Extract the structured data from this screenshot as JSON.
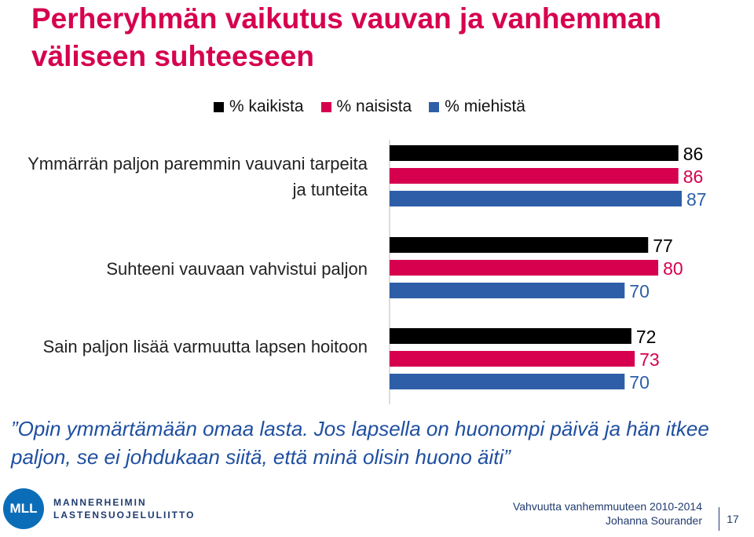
{
  "slide": {
    "title": "Perheryhmän vaikutus vauvan ja vanhemman väliseen suhteeseen",
    "quote": "”Opin ymmärtämään omaa lasta. Jos lapsella on huonompi päivä ja hän itkee paljon, se ei johdukaan siitä, että minä olisin huono äiti”",
    "logo": {
      "mark": "MLL",
      "line1": "MANNERHEIMIN",
      "line2": "LASTENSUOJELULIITTO"
    },
    "footer": {
      "line1": "Vahvuutta vanhemmuuteen 2010-2014",
      "line2": "Johanna Sourander",
      "page": "17"
    }
  },
  "chart_data": {
    "type": "bar",
    "orientation": "horizontal",
    "categories": [
      "Ymmärrän paljon paremmin vauvani tarpeita ja tunteita",
      "Suhteeni vauvaan vahvistui paljon",
      "Sain paljon lisää varmuutta lapsen hoitoon"
    ],
    "series": [
      {
        "name": "% kaikista",
        "values": [
          86,
          77,
          72
        ],
        "color": "#000000"
      },
      {
        "name": "% naisista",
        "values": [
          86,
          80,
          73
        ],
        "color": "#d6004f"
      },
      {
        "name": "% miehistä",
        "values": [
          87,
          70,
          70
        ],
        "color": "#2e5ea8"
      }
    ],
    "legend": "top",
    "grid": false,
    "value_labels": true
  }
}
